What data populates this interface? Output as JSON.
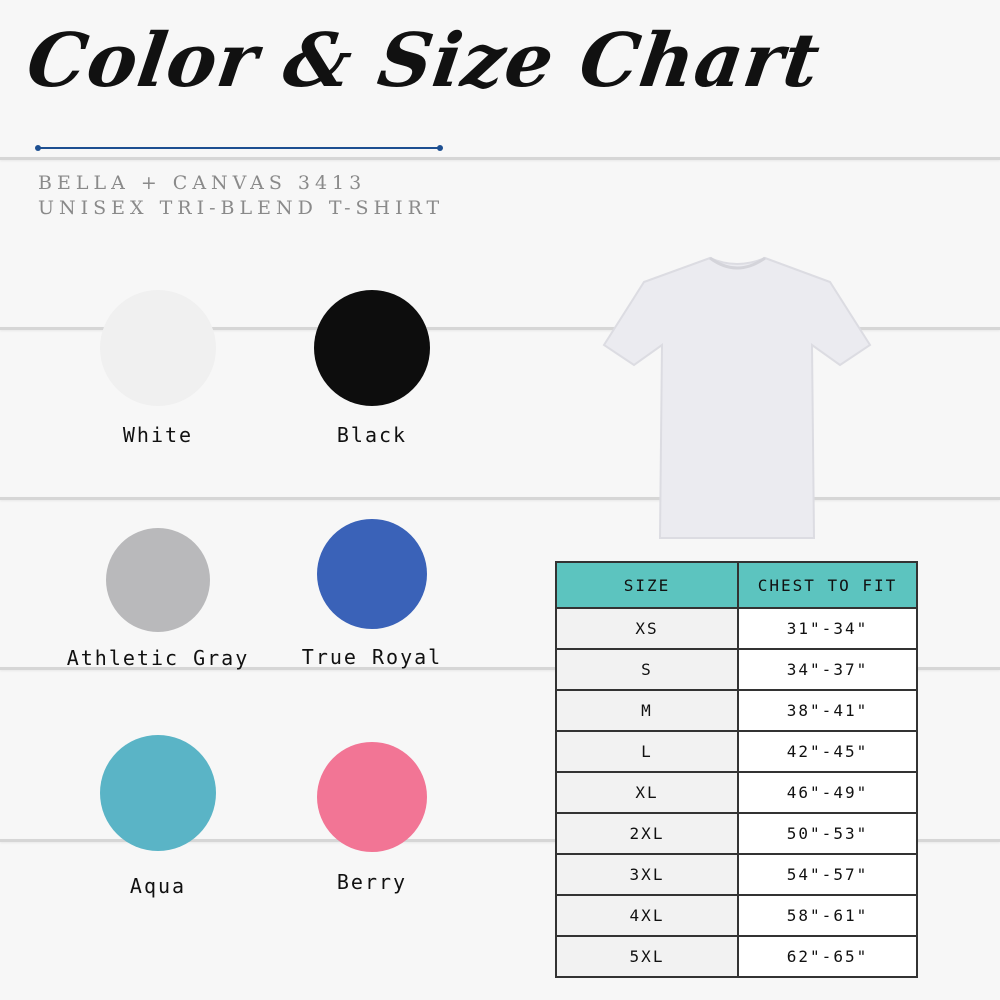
{
  "title": "Color & Size Chart",
  "subtitle_line1": "Bella + Canvas 3413",
  "subtitle_line2": "Unisex Tri-Blend T-Shirt",
  "colors": [
    {
      "name": "White",
      "hex": "#f0f0f0"
    },
    {
      "name": "Black",
      "hex": "#0d0d0d"
    },
    {
      "name": "Athletic Gray",
      "hex": "#b9b9bb"
    },
    {
      "name": "True Royal",
      "hex": "#3a62b8"
    },
    {
      "name": "Aqua",
      "hex": "#5ab4c6"
    },
    {
      "name": "Berry",
      "hex": "#f27595"
    }
  ],
  "table": {
    "headers": [
      "SIZE",
      "CHEST TO FIT"
    ],
    "rows": [
      [
        "XS",
        "31\"-34\""
      ],
      [
        "S",
        "34\"-37\""
      ],
      [
        "M",
        "38\"-41\""
      ],
      [
        "L",
        "42\"-45\""
      ],
      [
        "XL",
        "46\"-49\""
      ],
      [
        "2XL",
        "50\"-53\""
      ],
      [
        "3XL",
        "54\"-57\""
      ],
      [
        "4XL",
        "58\"-61\""
      ],
      [
        "5XL",
        "62\"-65\""
      ]
    ],
    "header_color": "#5cc4bf"
  }
}
